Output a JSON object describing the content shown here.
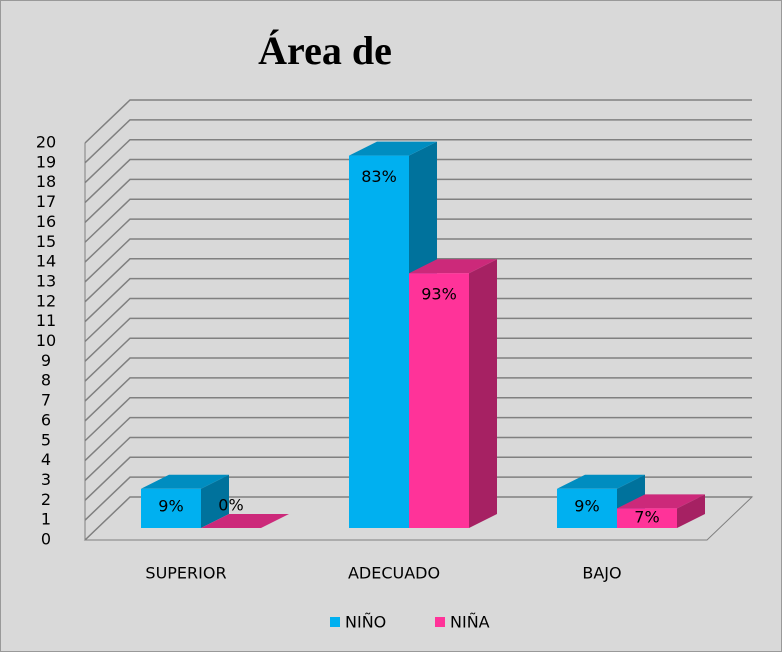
{
  "chart_data": {
    "type": "bar3d",
    "title": "Área de",
    "categories": [
      "SUPERIOR",
      "ADECUADO",
      "BAJO"
    ],
    "series": [
      {
        "name": "NIÑO",
        "color": "#00b0f0",
        "values": [
          2,
          19,
          2
        ],
        "value_labels": [
          "9%",
          "83%",
          "9%"
        ]
      },
      {
        "name": "NIÑA",
        "color": "#ff3399",
        "values": [
          0,
          13,
          1
        ],
        "value_labels": [
          "0%",
          "93%",
          "7%"
        ]
      }
    ],
    "ylim": [
      0,
      20
    ],
    "yticks": [
      0,
      1,
      2,
      3,
      4,
      5,
      6,
      7,
      8,
      9,
      10,
      11,
      12,
      13,
      14,
      15,
      16,
      17,
      18,
      19,
      20
    ],
    "grid": true,
    "legend": "bottom"
  }
}
